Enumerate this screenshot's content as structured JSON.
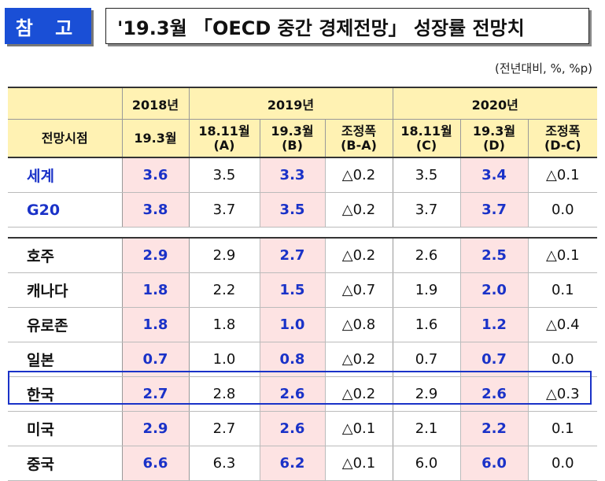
{
  "header": {
    "tag": "참 고",
    "title": "'19.3월 「OECD 중간 경제전망」 성장률 전망치"
  },
  "unit_note": "(전년대비, %, %p)",
  "table": {
    "col_header_label": "전망시점",
    "years": [
      "2018년",
      "2019년",
      "2020년"
    ],
    "sub": {
      "c2018": "19.3월",
      "a_top": "18.11월",
      "a_bot": "(A)",
      "b_top": "19.3월",
      "b_bot": "(B)",
      "ba_top": "조정폭",
      "ba_bot": "(B-A)",
      "c_top": "18.11월",
      "c_bot": "(C)",
      "d_top": "19.3월",
      "d_bot": "(D)",
      "dc_top": "조정폭",
      "dc_bot": "(D-C)"
    },
    "group1": [
      {
        "name": "세계",
        "v2018": "3.6",
        "a": "3.5",
        "b": "3.3",
        "ba": "△0.2",
        "c": "3.5",
        "d": "3.4",
        "dc": "△0.1"
      },
      {
        "name": "G20",
        "v2018": "3.8",
        "a": "3.7",
        "b": "3.5",
        "ba": "△0.2",
        "c": "3.7",
        "d": "3.7",
        "dc": "0.0"
      }
    ],
    "group2": [
      {
        "name": "호주",
        "v2018": "2.9",
        "a": "2.9",
        "b": "2.7",
        "ba": "△0.2",
        "c": "2.6",
        "d": "2.5",
        "dc": "△0.1"
      },
      {
        "name": "캐나다",
        "v2018": "1.8",
        "a": "2.2",
        "b": "1.5",
        "ba": "△0.7",
        "c": "1.9",
        "d": "2.0",
        "dc": "0.1"
      },
      {
        "name": "유로존",
        "v2018": "1.8",
        "a": "1.8",
        "b": "1.0",
        "ba": "△0.8",
        "c": "1.6",
        "d": "1.2",
        "dc": "△0.4"
      },
      {
        "name": "일본",
        "v2018": "0.7",
        "a": "1.0",
        "b": "0.8",
        "ba": "△0.2",
        "c": "0.7",
        "d": "0.7",
        "dc": "0.0"
      },
      {
        "name": "한국",
        "v2018": "2.7",
        "a": "2.8",
        "b": "2.6",
        "ba": "△0.2",
        "c": "2.9",
        "d": "2.6",
        "dc": "△0.3"
      },
      {
        "name": "미국",
        "v2018": "2.9",
        "a": "2.7",
        "b": "2.6",
        "ba": "△0.1",
        "c": "2.1",
        "d": "2.2",
        "dc": "0.1"
      },
      {
        "name": "중국",
        "v2018": "6.6",
        "a": "6.3",
        "b": "6.2",
        "ba": "△0.1",
        "c": "6.0",
        "d": "6.0",
        "dc": "0.0"
      }
    ],
    "colors": {
      "header_bg": "#fff2b3",
      "highlight_bg": "#fde3e3",
      "accent_blue": "#1a32c8",
      "tag_blue": "#1a4fd6"
    }
  }
}
